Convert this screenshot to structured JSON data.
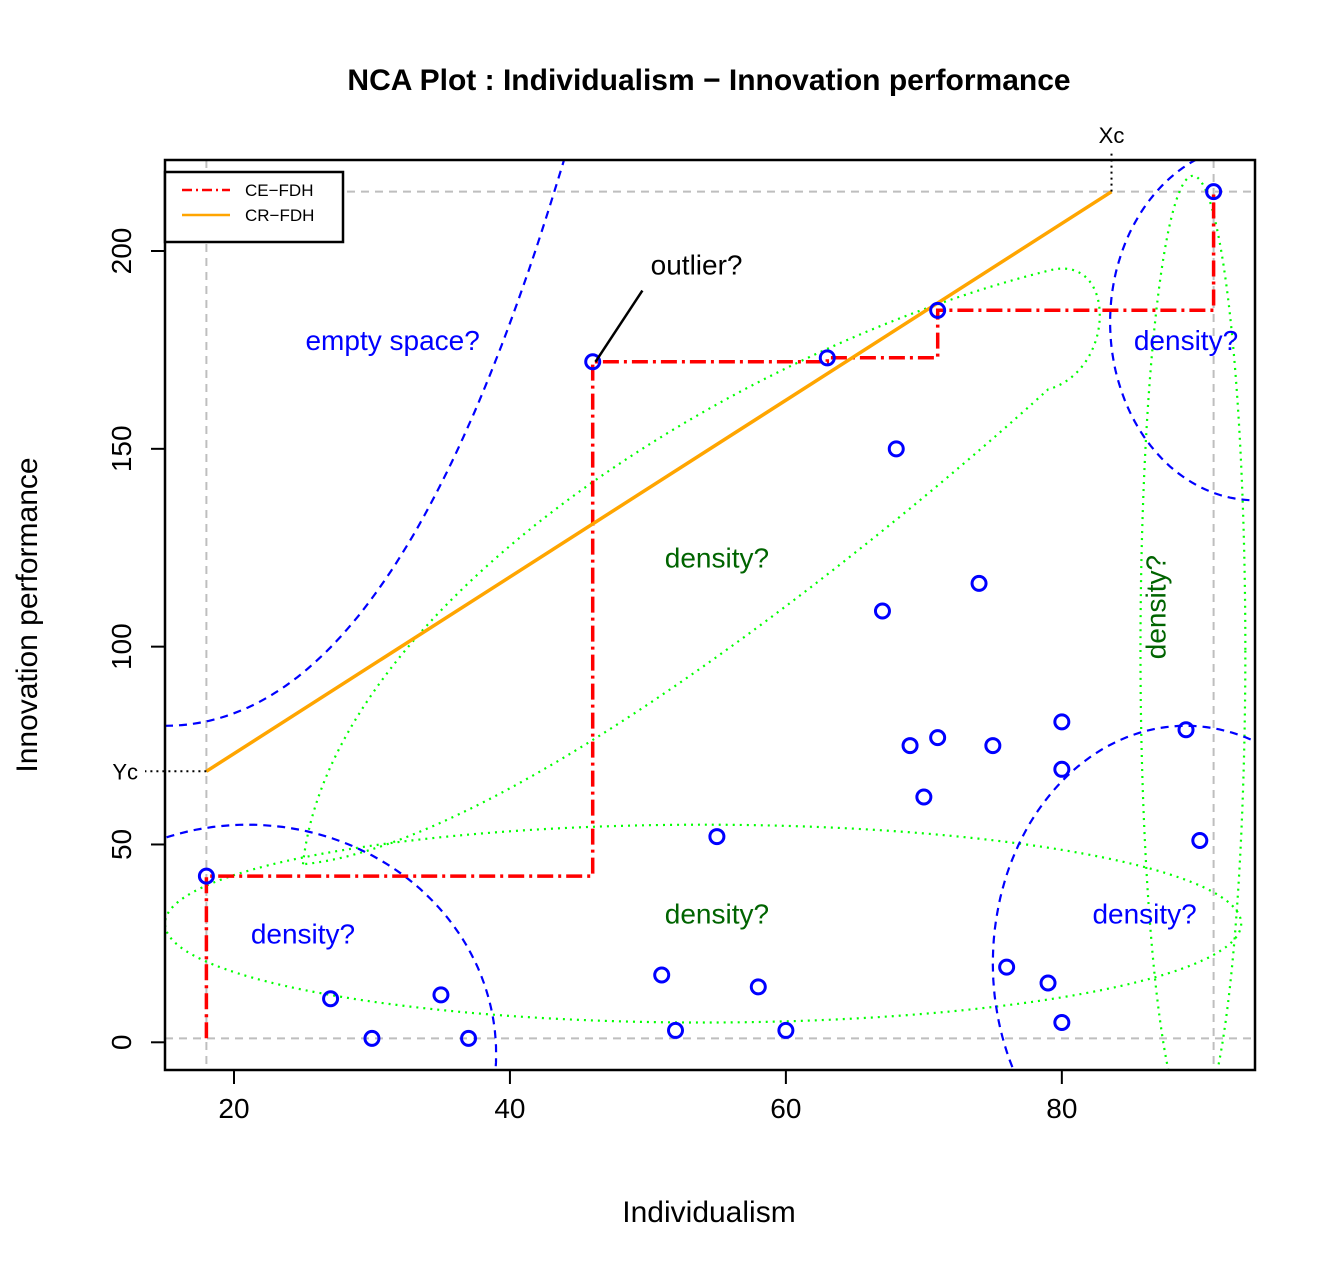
{
  "chart_data": {
    "type": "scatter",
    "title": "NCA Plot : Individualism − Innovation performance",
    "xlabel": "Individualism",
    "ylabel": "Innovation performance",
    "xlim": [
      15,
      94
    ],
    "ylim": [
      -7,
      223
    ],
    "xticks": [
      20,
      40,
      60,
      80
    ],
    "yticks": [
      0,
      50,
      100,
      150,
      200
    ],
    "grid": false,
    "legend_position": "top-left",
    "points": [
      {
        "x": 18,
        "y": 42
      },
      {
        "x": 27,
        "y": 11
      },
      {
        "x": 30,
        "y": 1
      },
      {
        "x": 35,
        "y": 12
      },
      {
        "x": 37,
        "y": 1
      },
      {
        "x": 46,
        "y": 172
      },
      {
        "x": 51,
        "y": 17
      },
      {
        "x": 52,
        "y": 3
      },
      {
        "x": 55,
        "y": 52
      },
      {
        "x": 58,
        "y": 14
      },
      {
        "x": 60,
        "y": 3
      },
      {
        "x": 63,
        "y": 173
      },
      {
        "x": 67,
        "y": 109
      },
      {
        "x": 68,
        "y": 150
      },
      {
        "x": 69,
        "y": 75
      },
      {
        "x": 70,
        "y": 62
      },
      {
        "x": 71,
        "y": 185
      },
      {
        "x": 71,
        "y": 77
      },
      {
        "x": 74,
        "y": 116
      },
      {
        "x": 75,
        "y": 75
      },
      {
        "x": 76,
        "y": 19
      },
      {
        "x": 79,
        "y": 15
      },
      {
        "x": 80,
        "y": 81
      },
      {
        "x": 80,
        "y": 69
      },
      {
        "x": 80,
        "y": 5
      },
      {
        "x": 89,
        "y": 79
      },
      {
        "x": 90,
        "y": 51
      },
      {
        "x": 91,
        "y": 215
      }
    ],
    "ce_fdh": [
      [
        18,
        1
      ],
      [
        18,
        42
      ],
      [
        46,
        42
      ],
      [
        46,
        172
      ],
      [
        63,
        172
      ],
      [
        63,
        173
      ],
      [
        71,
        173
      ],
      [
        71,
        185
      ],
      [
        91,
        185
      ],
      [
        91,
        215
      ]
    ],
    "cr_fdh": [
      [
        18,
        68.5
      ],
      [
        83.6,
        215
      ]
    ],
    "reference_lines": {
      "x": [
        18,
        91
      ],
      "y": [
        1,
        215
      ]
    },
    "xc": 83.6,
    "yc": 68.5,
    "xc_label": "Xc",
    "yc_label": "Yc",
    "legend": [
      {
        "label": "CE−FDH",
        "color": "#ff0000",
        "style": "dashdot"
      },
      {
        "label": "CR−FDH",
        "color": "#ffa500",
        "style": "solid"
      }
    ],
    "annotations": [
      {
        "text": "outlier?",
        "x": 50.2,
        "y": 194,
        "color": "#000000"
      },
      {
        "text": "empty space?",
        "x": 31.5,
        "y": 175,
        "color": "#0000ff"
      },
      {
        "text": "density?",
        "x": 89,
        "y": 175,
        "color": "#0000ff"
      },
      {
        "text": "density?",
        "x": 55,
        "y": 120,
        "color": "#006400"
      },
      {
        "text": "density?",
        "x": 55,
        "y": 30,
        "color": "#006400"
      },
      {
        "text": "density?",
        "x": 25,
        "y": 25,
        "color": "#0000ff"
      },
      {
        "text": "density?",
        "x": 86,
        "y": 30,
        "color": "#0000ff"
      },
      {
        "text": "density?",
        "x": 87.5,
        "y": 110,
        "color": "#006400",
        "rotation": -90
      }
    ],
    "colors": {
      "points": "#0000ff",
      "ce_fdh": "#ff0000",
      "cr_fdh": "#ffa500",
      "reference": "#bebebe",
      "blue_curves": "#0000ff",
      "green_ellipses": "#00ff00"
    }
  }
}
